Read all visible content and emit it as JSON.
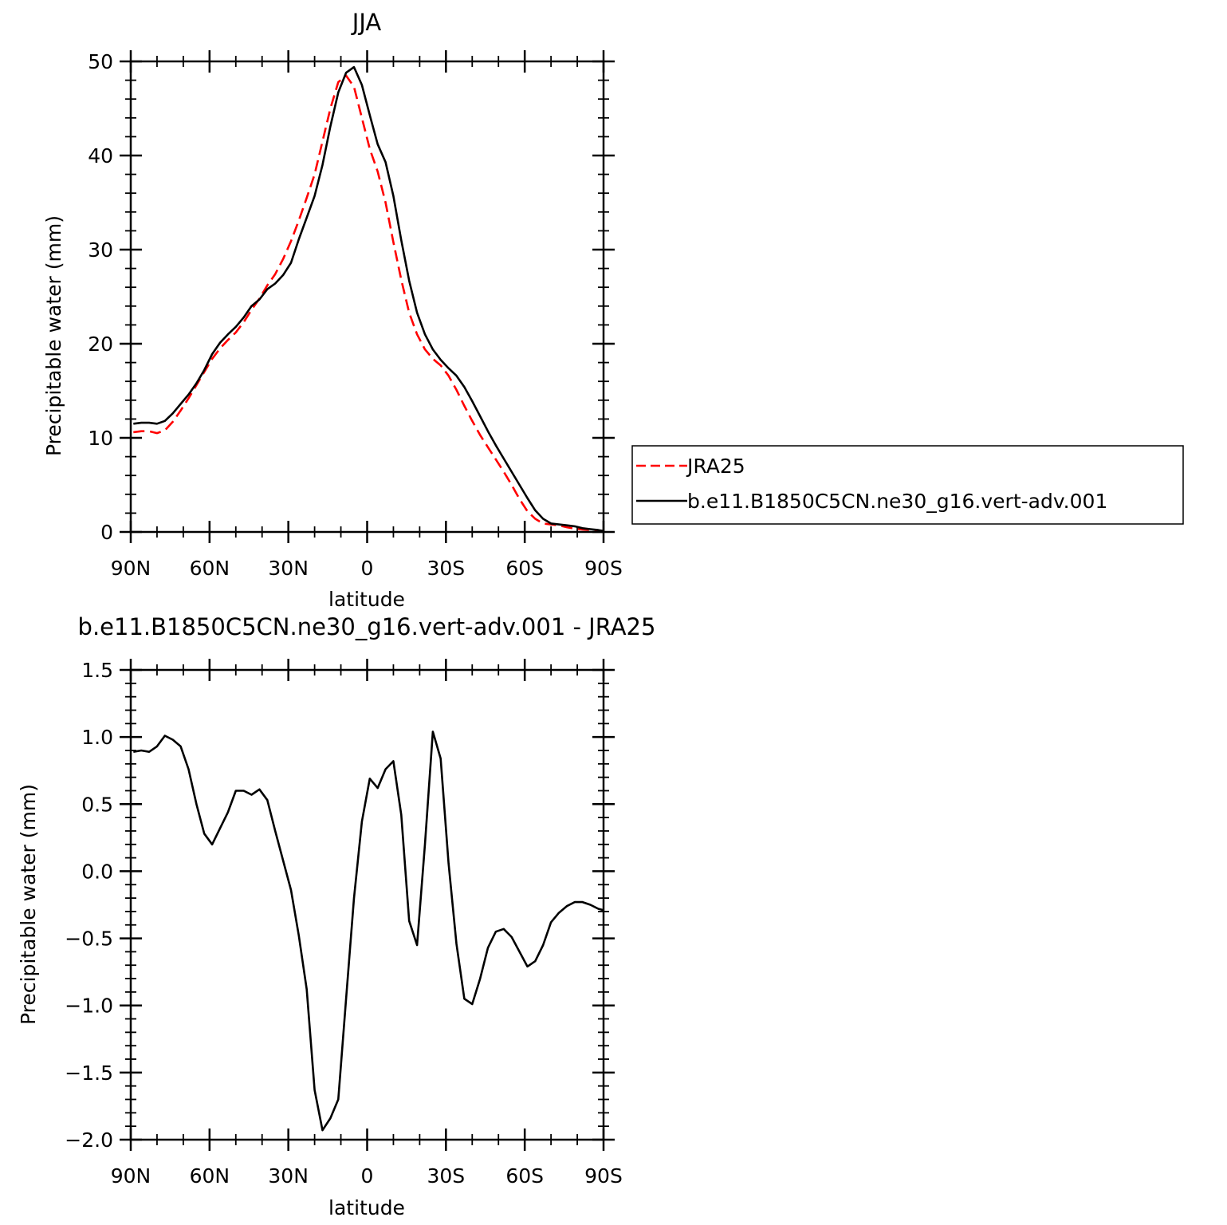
{
  "chart_data": [
    {
      "type": "line",
      "title": "JJA",
      "xlabel": "latitude",
      "ylabel": "Precipitable water (mm)",
      "xlim": [
        90,
        -90
      ],
      "ylim": [
        0,
        50
      ],
      "x_ticks": [
        90,
        60,
        30,
        0,
        -30,
        -60,
        -90
      ],
      "x_tick_labels": [
        "90N",
        "60N",
        "30N",
        "0",
        "30S",
        "60S",
        "90S"
      ],
      "y_ticks": [
        0,
        10,
        20,
        30,
        40,
        50
      ],
      "y_tick_labels": [
        "0",
        "10",
        "20",
        "30",
        "40",
        "50"
      ],
      "legend": {
        "placement": "right-outside",
        "entries": [
          "JRA25",
          "b.e11.B1850C5CN.ne30_g16.vert-adv.001"
        ]
      },
      "series": [
        {
          "name": "JRA25",
          "color": "#ff0000",
          "dash": "dashed",
          "x": [
            89,
            86,
            83,
            80,
            77,
            74,
            71,
            68,
            65,
            62,
            59,
            56,
            53,
            50,
            47,
            44,
            41,
            38,
            35,
            32,
            29,
            26,
            23,
            20,
            17,
            14,
            11,
            8,
            5,
            2,
            -1,
            -4,
            -7,
            -10,
            -13,
            -16,
            -19,
            -22,
            -25,
            -28,
            -31,
            -34,
            -37,
            -40,
            -43,
            -46,
            -49,
            -52,
            -55,
            -58,
            -61,
            -64,
            -67,
            -70,
            -73,
            -76,
            -79,
            -82,
            -85,
            -88,
            -90
          ],
          "y": [
            10.6,
            10.7,
            10.7,
            10.5,
            10.8,
            11.7,
            12.9,
            14.2,
            15.6,
            17.0,
            18.4,
            19.5,
            20.4,
            21.2,
            22.3,
            23.6,
            24.8,
            26.2,
            27.4,
            29.0,
            30.9,
            33.1,
            35.5,
            38.0,
            41.5,
            45.0,
            47.8,
            48.5,
            47.3,
            44.0,
            40.7,
            38.3,
            35.0,
            30.8,
            26.8,
            23.3,
            21.0,
            19.4,
            18.4,
            17.7,
            16.6,
            15.1,
            13.4,
            11.8,
            10.3,
            9.0,
            7.7,
            6.4,
            5.0,
            3.5,
            2.2,
            1.4,
            0.9,
            0.8,
            0.7,
            0.5,
            0.35,
            0.25,
            0.2,
            0.15,
            0.1
          ]
        },
        {
          "name": "b.e11.B1850C5CN.ne30_g16.vert-adv.001",
          "color": "#000000",
          "dash": "solid",
          "x": [
            89,
            86,
            83,
            80,
            77,
            74,
            71,
            68,
            65,
            62,
            59,
            56,
            53,
            50,
            47,
            44,
            41,
            38,
            35,
            32,
            29,
            26,
            23,
            20,
            17,
            14,
            11,
            8,
            5,
            2,
            -1,
            -4,
            -7,
            -10,
            -13,
            -16,
            -19,
            -22,
            -25,
            -28,
            -31,
            -34,
            -37,
            -40,
            -43,
            -46,
            -49,
            -52,
            -55,
            -58,
            -61,
            -64,
            -67,
            -70,
            -73,
            -76,
            -79,
            -82,
            -85,
            -88,
            -90
          ],
          "y": [
            11.5,
            11.6,
            11.6,
            11.5,
            11.8,
            12.6,
            13.6,
            14.6,
            15.8,
            17.2,
            18.9,
            20.1,
            21.0,
            21.8,
            22.8,
            24.0,
            24.7,
            25.8,
            26.4,
            27.3,
            28.6,
            31.1,
            33.4,
            35.7,
            39.0,
            43.1,
            46.7,
            48.8,
            49.4,
            47.5,
            44.3,
            41.2,
            39.3,
            35.7,
            31.0,
            26.7,
            23.3,
            21.0,
            19.4,
            18.3,
            17.4,
            16.6,
            15.4,
            13.9,
            12.3,
            10.7,
            9.2,
            7.8,
            6.4,
            5.0,
            3.6,
            2.3,
            1.4,
            0.9,
            0.8,
            0.7,
            0.6,
            0.4,
            0.3,
            0.2,
            0.1
          ]
        }
      ]
    },
    {
      "type": "line",
      "title": "b.e11.B1850C5CN.ne30_g16.vert-adv.001 - JRA25",
      "xlabel": "latitude",
      "ylabel": "Precipitable water (mm)",
      "xlim": [
        90,
        -90
      ],
      "ylim": [
        -2.0,
        1.5
      ],
      "x_ticks": [
        90,
        60,
        30,
        0,
        -30,
        -60,
        -90
      ],
      "x_tick_labels": [
        "90N",
        "60N",
        "30N",
        "0",
        "30S",
        "60S",
        "90S"
      ],
      "y_ticks": [
        -2.0,
        -1.5,
        -1.0,
        -0.5,
        0.0,
        0.5,
        1.0,
        1.5
      ],
      "y_tick_labels": [
        "−2.0",
        "−1.5",
        "−1.0",
        "−0.5",
        "0.0",
        "0.5",
        "1.0",
        "1.5"
      ],
      "series": [
        {
          "color": "#000000",
          "dash": "solid",
          "x": [
            89,
            86,
            83,
            80,
            77,
            74,
            71,
            68,
            65,
            62,
            59,
            56,
            53,
            50,
            47,
            44,
            41,
            38,
            35,
            32,
            29,
            26,
            23,
            20,
            17,
            14,
            11,
            8,
            5,
            2,
            -1,
            -4,
            -7,
            -10,
            -13,
            -16,
            -19,
            -22,
            -25,
            -28,
            -31,
            -34,
            -37,
            -40,
            -43,
            -46,
            -49,
            -52,
            -55,
            -58,
            -61,
            -64,
            -67,
            -70,
            -73,
            -76,
            -79,
            -82,
            -85,
            -88,
            -90
          ],
          "y": [
            0.89,
            0.9,
            0.89,
            0.93,
            1.01,
            0.98,
            0.93,
            0.76,
            0.5,
            0.28,
            0.2,
            0.32,
            0.44,
            0.6,
            0.6,
            0.57,
            0.61,
            0.53,
            0.3,
            0.08,
            -0.14,
            -0.48,
            -0.88,
            -1.63,
            -1.93,
            -1.84,
            -1.7,
            -0.95,
            -0.2,
            0.37,
            0.69,
            0.62,
            0.76,
            0.82,
            0.42,
            -0.37,
            -0.55,
            0.2,
            1.04,
            0.84,
            0.06,
            -0.54,
            -0.95,
            -0.99,
            -0.8,
            -0.57,
            -0.45,
            -0.43,
            -0.49,
            -0.6,
            -0.71,
            -0.67,
            -0.55,
            -0.38,
            -0.31,
            -0.26,
            -0.23,
            -0.23,
            -0.25,
            -0.28,
            -0.29
          ]
        }
      ]
    }
  ]
}
